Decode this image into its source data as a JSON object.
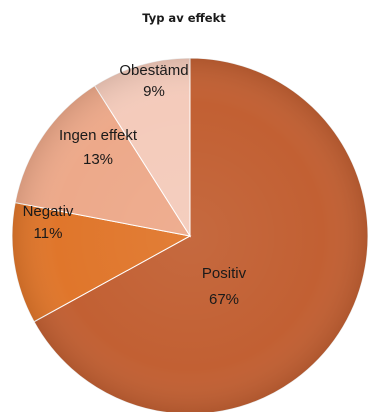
{
  "chart_data": {
    "type": "pie",
    "title": "Typ av effekt",
    "start_angle_deg": 0,
    "direction": "clockwise",
    "legend": "none",
    "slices": [
      {
        "label": "Positiv",
        "percent_label": "67%",
        "value": 67,
        "color": "#c26033"
      },
      {
        "label": "Negativ",
        "percent_label": "11%",
        "value": 11,
        "color": "#e0762b"
      },
      {
        "label": "Ingen effekt",
        "percent_label": "13%",
        "value": 13,
        "color": "#eda98a"
      },
      {
        "label": "Obestämd",
        "percent_label": "9%",
        "value": 9,
        "color": "#f4cbbb"
      }
    ]
  }
}
